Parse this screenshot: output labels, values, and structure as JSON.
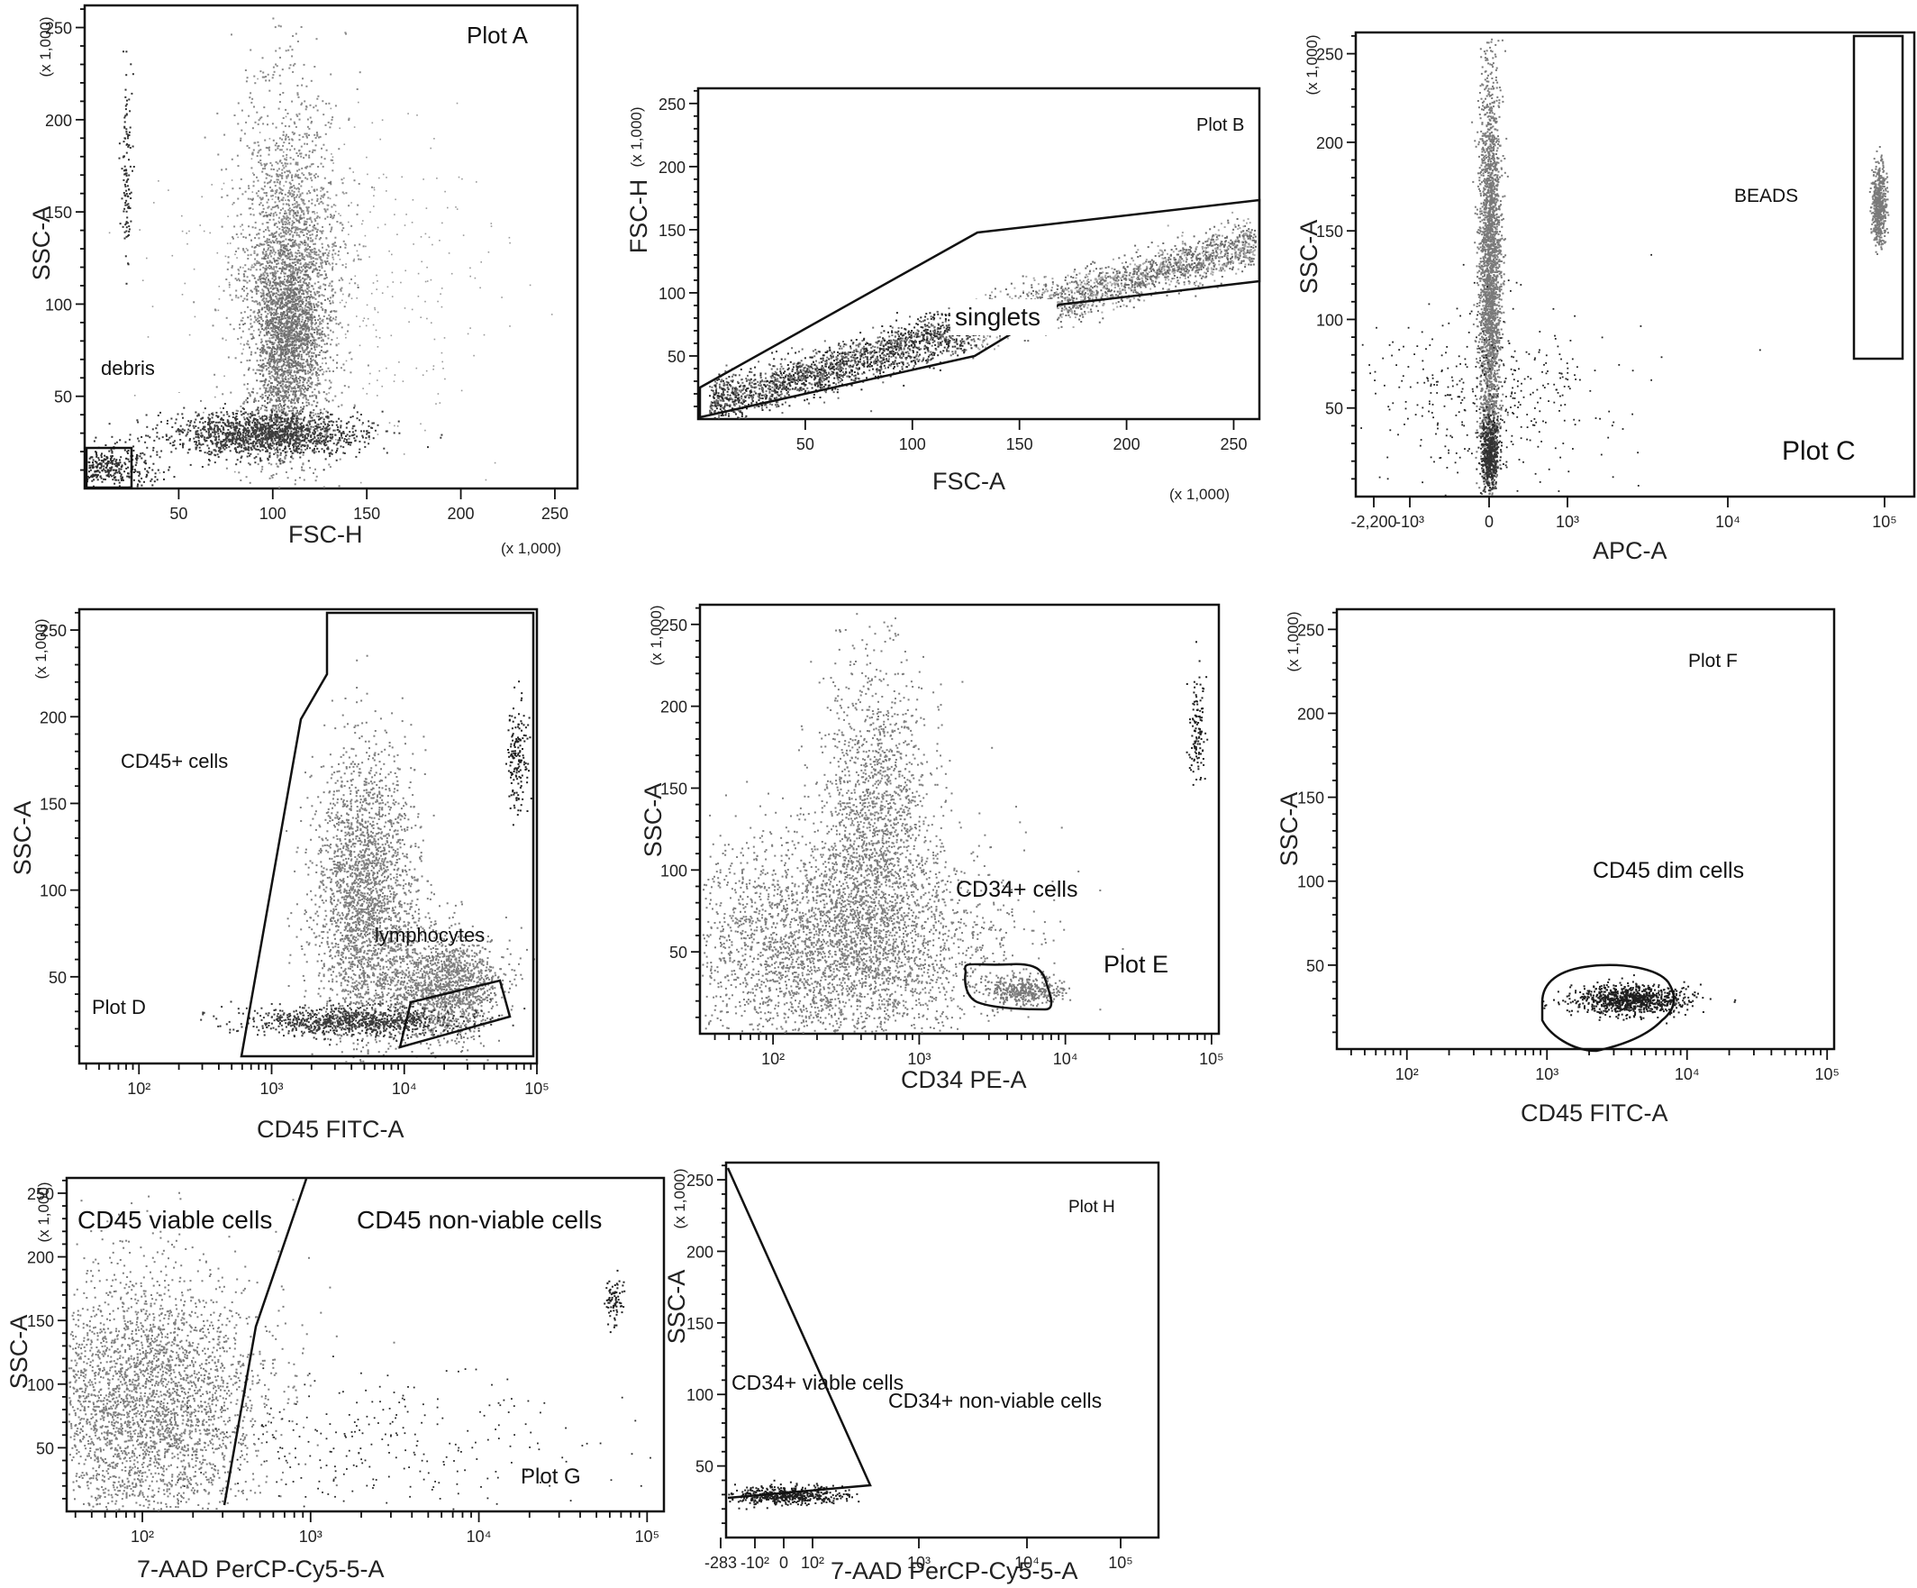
{
  "chart_data": [
    {
      "id": "A",
      "type": "scatter",
      "title": "Plot A",
      "xlabel": "FSC-H",
      "ylabel": "SSC-A",
      "x_unit": "(x 1,000)",
      "y_unit": "(x 1,000)",
      "xlim": [
        0,
        262
      ],
      "ylim": [
        0,
        262
      ],
      "x_ticks": [
        "50",
        "100",
        "150",
        "200",
        "250"
      ],
      "y_ticks": [
        "50",
        "100",
        "150",
        "200",
        "250"
      ],
      "annotations": [
        "debris"
      ],
      "populations": [
        {
          "kind": "dense",
          "x_center": 95,
          "y_center": 30,
          "x_spread": 22,
          "y_spread": 10
        },
        {
          "kind": "main",
          "x_center": 108,
          "y_center": 110,
          "x_spread": 10,
          "y_spread": 70
        },
        {
          "kind": "debris",
          "x_center": 10,
          "y_center": 12,
          "x_spread": 8,
          "y_spread": 6
        },
        {
          "kind": "events",
          "x_center": 22,
          "y_center": 170,
          "x_spread": 2,
          "y_spread": 25
        }
      ]
    },
    {
      "id": "B",
      "type": "scatter",
      "title": "Plot B",
      "xlabel": "FSC-A",
      "ylabel": "FSC-H",
      "x_unit": "(x 1,000)",
      "y_unit": "(x 1,000)",
      "xlim": [
        0,
        262
      ],
      "ylim": [
        0,
        262
      ],
      "x_ticks": [
        "50",
        "100",
        "150",
        "200",
        "250"
      ],
      "y_ticks": [
        "50",
        "100",
        "150",
        "200",
        "250"
      ],
      "annotations": [
        "singlets"
      ],
      "populations": [
        {
          "kind": "diagonal",
          "x_from": 5,
          "x_to": 260,
          "slope": 0.52,
          "spread": 12
        }
      ]
    },
    {
      "id": "C",
      "type": "scatter",
      "title": "Plot C",
      "xlabel": "APC-A",
      "ylabel": "SSC-A",
      "x_scale": "biexponential",
      "y_unit": "(x 1,000)",
      "ylim": [
        0,
        262
      ],
      "x_ticks": [
        "-2,200",
        "-10³",
        "0",
        "10³",
        "10⁴",
        "10⁵"
      ],
      "y_ticks": [
        "50",
        "100",
        "150",
        "200",
        "250"
      ],
      "annotations": [
        "BEADS"
      ],
      "populations": [
        {
          "kind": "column",
          "x_value": "0",
          "y_center": 120,
          "y_spread": 80
        },
        {
          "kind": "beads",
          "x_value": "10⁵",
          "y_center": 160,
          "y_spread": 30
        }
      ]
    },
    {
      "id": "D",
      "type": "scatter",
      "title": "Plot D",
      "xlabel": "CD45 FITC-A",
      "ylabel": "SSC-A",
      "x_scale": "log",
      "y_unit": "(x 1,000)",
      "ylim": [
        0,
        262
      ],
      "x_ticks": [
        "10²",
        "10³",
        "10⁴",
        "10⁵"
      ],
      "y_ticks": [
        "50",
        "100",
        "150",
        "200",
        "250"
      ],
      "annotations": [
        "CD45+ cells",
        "lymphocytes"
      ],
      "populations": [
        {
          "kind": "main",
          "x_log": 3.8,
          "y_center": 90,
          "y_spread": 70
        },
        {
          "kind": "lymphocytes",
          "x_log": 4.4,
          "y_center": 40,
          "y_spread": 20
        }
      ]
    },
    {
      "id": "E",
      "type": "scatter",
      "title": "Plot E",
      "xlabel": "CD34 PE-A",
      "ylabel": "SSC-A",
      "x_scale": "log",
      "y_unit": "(x 1,000)",
      "ylim": [
        0,
        262
      ],
      "x_ticks": [
        "10²",
        "10³",
        "10⁴",
        "10⁵"
      ],
      "y_ticks": [
        "50",
        "100",
        "150",
        "200",
        "250"
      ],
      "annotations": [
        "CD34+ cells"
      ],
      "populations": [
        {
          "kind": "main",
          "x_log": 2.3,
          "y_center": 60,
          "y_spread": 60
        },
        {
          "kind": "cd34",
          "x_log": 3.7,
          "y_center": 27,
          "y_spread": 8
        }
      ]
    },
    {
      "id": "F",
      "type": "scatter",
      "title": "Plot F",
      "xlabel": "CD45 FITC-A",
      "ylabel": "SSC-A",
      "x_scale": "log",
      "y_unit": "(x 1,000)",
      "ylim": [
        0,
        262
      ],
      "x_ticks": [
        "10²",
        "10³",
        "10⁴",
        "10⁵"
      ],
      "y_ticks": [
        "50",
        "100",
        "150",
        "200",
        "250"
      ],
      "annotations": [
        "CD45 dim cells"
      ],
      "populations": [
        {
          "kind": "cd45dim",
          "x_log": 3.6,
          "y_center": 30,
          "y_spread": 8
        }
      ]
    },
    {
      "id": "G",
      "type": "scatter",
      "title": "Plot G",
      "xlabel": "7-AAD PerCP-Cy5-5-A",
      "ylabel": "SSC-A",
      "x_scale": "log",
      "y_unit": "(x 1,000)",
      "ylim": [
        0,
        262
      ],
      "x_ticks": [
        "10²",
        "10³",
        "10⁴",
        "10⁵"
      ],
      "y_ticks": [
        "50",
        "100",
        "150",
        "200",
        "250"
      ],
      "annotations": [
        "CD45 viable cells",
        "CD45 non-viable cells"
      ],
      "populations": [
        {
          "kind": "viable",
          "x_log": 2.0,
          "y_center": 90,
          "y_spread": 60
        },
        {
          "kind": "nonviable",
          "x_log": 3.5,
          "y_center": 60,
          "y_spread": 30
        }
      ]
    },
    {
      "id": "H",
      "type": "scatter",
      "title": "Plot H",
      "xlabel": "7-AAD PerCP-Cy5-5-A",
      "ylabel": "SSC-A",
      "x_scale": "biexponential",
      "y_unit": "(x 1,000)",
      "ylim": [
        0,
        262
      ],
      "x_ticks": [
        "-283",
        "-10²",
        "0",
        "10²",
        "10³",
        "10⁴",
        "10⁵"
      ],
      "y_ticks": [
        "50",
        "100",
        "150",
        "200",
        "250"
      ],
      "annotations": [
        "CD34+ viable cells",
        "CD34+ non-viable cells"
      ],
      "populations": [
        {
          "kind": "viable",
          "x_value": "0",
          "y_center": 30,
          "y_spread": 6
        }
      ]
    }
  ]
}
